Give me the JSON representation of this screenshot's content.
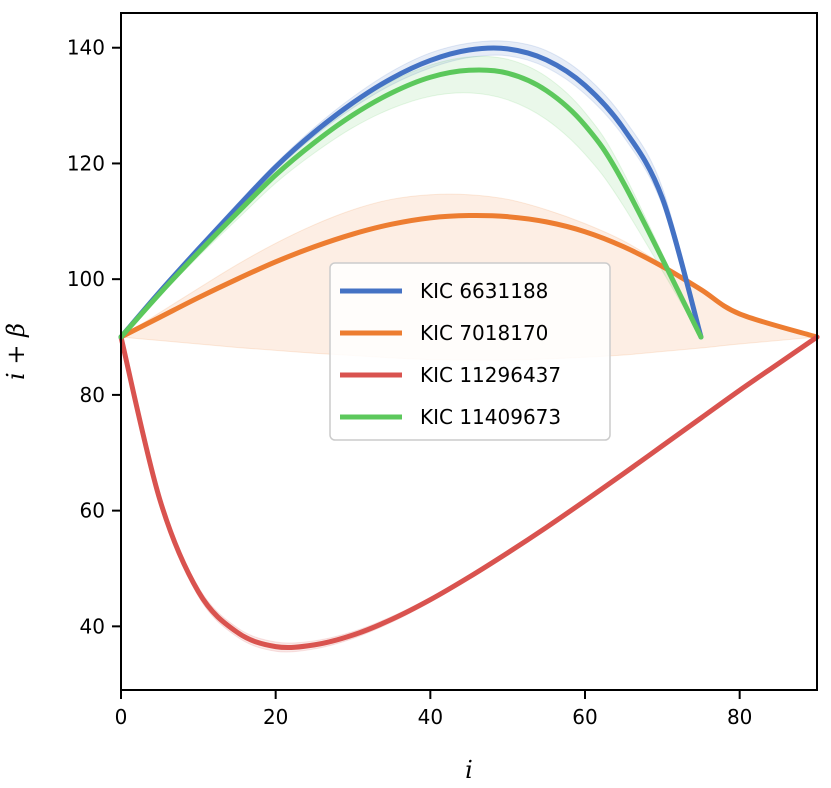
{
  "chart_data": {
    "type": "line",
    "title": "",
    "xlabel": "i",
    "ylabel": "i + β",
    "xlim": [
      0,
      90
    ],
    "ylim": [
      29,
      146
    ],
    "xticks": [
      0,
      20,
      40,
      60,
      80
    ],
    "yticks": [
      40,
      60,
      80,
      100,
      120,
      140
    ],
    "grid": false,
    "legend_position": "center",
    "x": [
      0,
      5,
      10,
      15,
      20,
      25,
      30,
      35,
      40,
      45,
      50,
      55,
      60,
      65,
      70,
      75,
      80,
      85,
      90
    ],
    "series": [
      {
        "name": "KIC 6631188",
        "color": "#4472c4",
        "values": [
          90,
          97.8,
          105.2,
          112.4,
          119.4,
          125.4,
          130.5,
          134.7,
          137.8,
          139.6,
          139.8,
          137.9,
          133.5,
          126,
          114,
          90
        ],
        "x": [
          0,
          5,
          10,
          15,
          20,
          25,
          30,
          35,
          40,
          45,
          50,
          55,
          60,
          65,
          70,
          75
        ],
        "band_upper": [
          90,
          98.1,
          105.7,
          113,
          120,
          126.2,
          131.5,
          135.9,
          139.1,
          140.8,
          141.1,
          139.5,
          135.2,
          127.8,
          115.8,
          90
        ],
        "band_lower": [
          90,
          97.5,
          104.7,
          111.8,
          118.8,
          124.7,
          129.6,
          133.6,
          136.5,
          138.3,
          138.6,
          136.6,
          132,
          124.6,
          112.8,
          90
        ]
      },
      {
        "name": "KIC 7018170",
        "color": "#ed7d31",
        "values": [
          90,
          93.4,
          96.8,
          100,
          103,
          105.6,
          107.8,
          109.5,
          110.6,
          111,
          110.8,
          109.9,
          108.2,
          105.6,
          102.2,
          98.2,
          94,
          90
        ],
        "x": [
          0,
          5,
          10,
          15,
          20,
          25,
          30,
          35,
          40,
          45,
          50,
          55,
          60,
          65,
          70,
          75,
          80,
          90
        ],
        "band_upper": [
          90,
          94.2,
          98.4,
          102.5,
          106.2,
          109.4,
          112,
          113.8,
          114.6,
          114.6,
          113.8,
          112,
          109.6,
          106.6,
          102.6,
          98.4,
          94.2,
          90
        ],
        "band_lower": [
          90,
          89.4,
          88.8,
          88.2,
          87.7,
          87.2,
          86.8,
          86.4,
          86.1,
          86,
          86,
          86.2,
          86.5,
          86.9,
          87.5,
          88.1,
          88.8,
          90
        ]
      },
      {
        "name": "KIC 11296437",
        "color": "#d9534f",
        "values": [
          90,
          62,
          46,
          39,
          36.5,
          36.8,
          38.5,
          41.2,
          44.6,
          48.5,
          52.7,
          57.1,
          61.7,
          66.4,
          71.2,
          76,
          80.8,
          85.4,
          90
        ],
        "band_upper": [
          90,
          62.6,
          46.8,
          39.8,
          37.3,
          37.5,
          39.1,
          41.7,
          45,
          48.8,
          53,
          57.4,
          62,
          66.6,
          71.4,
          76.2,
          81,
          85.5,
          90
        ],
        "band_lower": [
          90,
          61.4,
          45.2,
          38.2,
          35.7,
          36.1,
          37.9,
          40.7,
          44.2,
          48.2,
          52.4,
          56.8,
          61.4,
          66.2,
          71,
          75.8,
          80.6,
          85.3,
          90
        ]
      },
      {
        "name": "KIC 11409673",
        "color": "#5cc85c",
        "values": [
          90,
          97.5,
          104.6,
          111.4,
          118,
          123.6,
          128.4,
          132.2,
          134.9,
          136.1,
          135.6,
          132.6,
          126.6,
          116.6,
          90
        ],
        "x": [
          0,
          5,
          10,
          15,
          20,
          25,
          30,
          35,
          40,
          45,
          50,
          55,
          60,
          65,
          75
        ],
        "band_upper": [
          90,
          97.9,
          105.3,
          112.5,
          119.3,
          125.2,
          130.2,
          134.2,
          137,
          138.4,
          138,
          135,
          128.8,
          118.4,
          90
        ],
        "band_lower": [
          90,
          97.1,
          103.9,
          110.3,
          116.6,
          121.8,
          126.2,
          129.5,
          131.6,
          132.2,
          131,
          127.6,
          121.6,
          112.6,
          90
        ]
      }
    ]
  }
}
